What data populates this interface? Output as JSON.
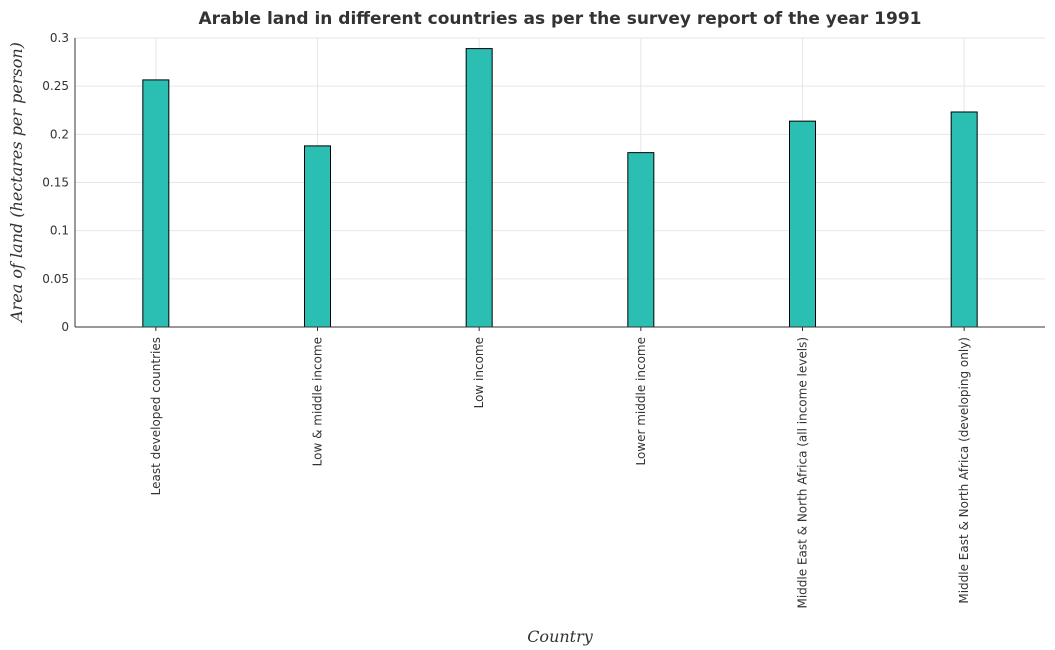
{
  "chart_data": {
    "type": "bar",
    "title": "Arable land in different countries as per the survey report of the year 1991",
    "xlabel": "Country",
    "ylabel": "Area of land (hectares per person)",
    "categories": [
      "Least developed countries",
      "Low & middle income",
      "Low income",
      "Lower middle income",
      "Middle East & North Africa (all income levels)",
      "Middle East & North Africa (developing only)"
    ],
    "values": [
      0.2565,
      0.188,
      0.289,
      0.181,
      0.2137,
      0.2232
    ],
    "ylim": [
      0,
      0.3
    ],
    "yticks": [
      "0",
      "0.05",
      "0.1",
      "0.15",
      "0.2",
      "0.25",
      "0.3"
    ],
    "ytick_values": [
      0,
      0.05,
      0.1,
      0.15,
      0.2,
      0.25,
      0.3
    ],
    "grid": true,
    "bar_color": "#2bbfb4"
  }
}
